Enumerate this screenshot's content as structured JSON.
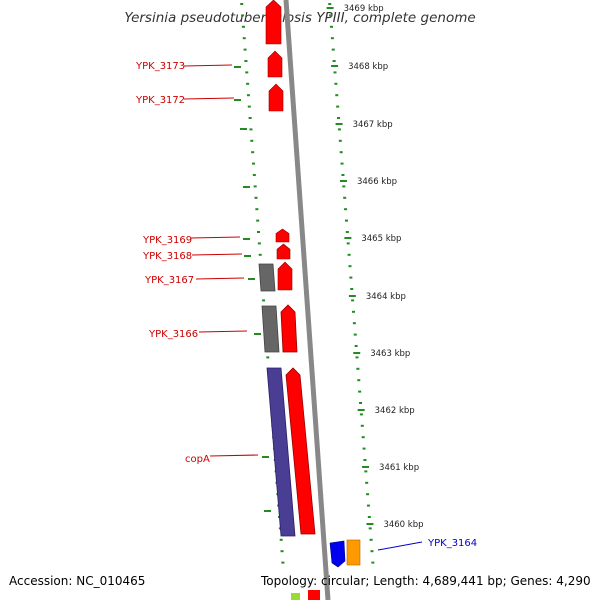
{
  "title": "Yersinia pseudotuberculosis YPIII, complete genome",
  "footer": {
    "accession": "Accession: NC_010465",
    "topology": "Topology: circular; Length: 4,689,441 bp; Genes: 4,290"
  },
  "colors": {
    "tick_dots": "#228B22",
    "backbone": "#888888",
    "gene_red": "#ff0000",
    "gene_gray": "#666666",
    "gene_purple": "#4a3d94",
    "gene_blue": "#0000ee",
    "gene_orange": "#ff9900",
    "label_red": "#cc0000",
    "label_blue": "#0000cc"
  },
  "scale_labels": [
    "3469 kbp",
    "3468 kbp",
    "3467 kbp",
    "3466 kbp",
    "3465 kbp",
    "3464 kbp",
    "3463 kbp",
    "3462 kbp",
    "3461 kbp",
    "3460 kbp"
  ],
  "gene_labels": [
    {
      "name": "YPK_3173",
      "color": "red"
    },
    {
      "name": "YPK_3172",
      "color": "red"
    },
    {
      "name": "YPK_3169",
      "color": "red"
    },
    {
      "name": "YPK_3168",
      "color": "red"
    },
    {
      "name": "YPK_3167",
      "color": "red"
    },
    {
      "name": "YPK_3166",
      "color": "red"
    },
    {
      "name": "copA",
      "color": "red"
    },
    {
      "name": "YPK_3164",
      "color": "blue"
    }
  ]
}
